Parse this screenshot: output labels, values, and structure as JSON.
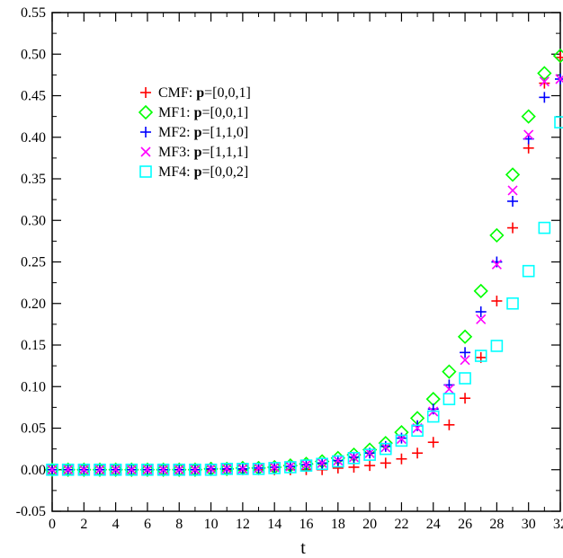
{
  "chart_data": {
    "type": "scatter",
    "xlabel": "t",
    "ylabel": "",
    "xlim": [
      0,
      32
    ],
    "ylim": [
      -0.05,
      0.55
    ],
    "x_ticks": [
      0,
      2,
      4,
      6,
      8,
      10,
      12,
      14,
      16,
      18,
      20,
      22,
      24,
      26,
      28,
      30,
      32
    ],
    "y_ticks": [
      -0.05,
      0.0,
      0.05,
      0.1,
      0.15,
      0.2,
      0.25,
      0.3,
      0.35,
      0.4,
      0.45,
      0.5,
      0.55
    ],
    "x_tick_labels": [
      "0",
      "2",
      "4",
      "6",
      "8",
      "10",
      "12",
      "14",
      "16",
      "18",
      "20",
      "22",
      "24",
      "26",
      "28",
      "30",
      "32"
    ],
    "y_tick_labels": [
      "-0.05",
      "0.00",
      "0.05",
      "0.10",
      "0.15",
      "0.20",
      "0.25",
      "0.30",
      "0.35",
      "0.40",
      "0.45",
      "0.50",
      "0.55"
    ],
    "grid": false,
    "legend_placement": "upper-left",
    "x": [
      0,
      1,
      2,
      3,
      4,
      5,
      6,
      7,
      8,
      9,
      10,
      11,
      12,
      13,
      14,
      15,
      16,
      17,
      18,
      19,
      20,
      21,
      22,
      23,
      24,
      25,
      26,
      27,
      28,
      29,
      30,
      31,
      32
    ],
    "series": [
      {
        "name": "CMF: p=[0,0,1]",
        "label_prefix": "CMF:",
        "label_bold": "p",
        "label_suffix": "=[0,0,1]",
        "marker": "plus",
        "color": "#ff0000",
        "values": [
          0,
          0,
          0,
          0,
          0,
          0,
          0,
          0,
          0,
          0,
          0,
          0,
          0,
          0,
          0,
          0,
          0,
          0.0,
          0.002,
          0.003,
          0.005,
          0.008,
          0.013,
          0.02,
          0.033,
          0.054,
          0.086,
          0.135,
          0.203,
          0.291,
          0.387,
          0.465,
          0.496
        ]
      },
      {
        "name": "MF1: p=[0,0,1]",
        "label_prefix": "MF1:",
        "label_bold": "p",
        "label_suffix": "=[0,0,1]",
        "marker": "diamond",
        "color": "#00ff00",
        "values": [
          0,
          0,
          0,
          0,
          0,
          0,
          0,
          0,
          0,
          0,
          0.001,
          0.001,
          0.002,
          0.002,
          0.003,
          0.005,
          0.007,
          0.01,
          0.014,
          0.018,
          0.024,
          0.032,
          0.045,
          0.062,
          0.085,
          0.118,
          0.16,
          0.215,
          0.282,
          0.355,
          0.425,
          0.477,
          0.498
        ]
      },
      {
        "name": "MF2: p=[1,1,0]",
        "label_prefix": "MF2:",
        "label_bold": "p",
        "label_suffix": "=[1,1,0]",
        "marker": "plus",
        "color": "#0000ff",
        "values": [
          0,
          0,
          0,
          0,
          0,
          0,
          0,
          0,
          0,
          0,
          0.001,
          0.001,
          0.001,
          0.002,
          0.003,
          0.004,
          0.006,
          0.008,
          0.011,
          0.015,
          0.02,
          0.028,
          0.038,
          0.053,
          0.073,
          0.102,
          0.141,
          0.19,
          0.25,
          0.323,
          0.398,
          0.448,
          0.47
        ]
      },
      {
        "name": "MF3: p=[1,1,1]",
        "label_prefix": "MF3:",
        "label_bold": "p",
        "label_suffix": "=[1,1,1]",
        "marker": "cross",
        "color": "#ff00ff",
        "values": [
          0,
          0,
          0,
          0,
          0,
          0,
          0,
          0,
          0,
          0,
          0.001,
          0.001,
          0.001,
          0.002,
          0.003,
          0.004,
          0.006,
          0.008,
          0.011,
          0.015,
          0.02,
          0.027,
          0.037,
          0.05,
          0.07,
          0.097,
          0.132,
          0.181,
          0.247,
          0.336,
          0.403,
          0.467,
          0.47
        ]
      },
      {
        "name": "MF4: p=[0,0,2]",
        "label_prefix": "MF4:",
        "label_bold": "p",
        "label_suffix": "=[0,0,2]",
        "marker": "square",
        "color": "#00ffff",
        "values": [
          0,
          0,
          0,
          0,
          0,
          0,
          0,
          0,
          0,
          0,
          0,
          0.001,
          0.001,
          0.001,
          0.002,
          0.003,
          0.005,
          0.007,
          0.01,
          0.014,
          0.018,
          0.025,
          0.035,
          0.047,
          0.064,
          0.085,
          0.11,
          0.137,
          0.149,
          0.2,
          0.239,
          0.291,
          0.418
        ]
      }
    ]
  }
}
